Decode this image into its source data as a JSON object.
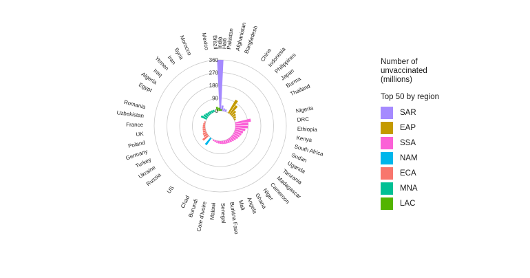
{
  "chart_data": {
    "type": "circular-bar",
    "title": "",
    "radial_ticks": [
      "0",
      "90",
      "180",
      "270",
      "360"
    ],
    "legend": {
      "title": "Number of unvaccinated (millions)",
      "subtitle": "Top 50 by region",
      "items": [
        {
          "region": "SAR",
          "color": "#A58AFF"
        },
        {
          "region": "EAP",
          "color": "#C49A00"
        },
        {
          "region": "SSA",
          "color": "#FB61D7"
        },
        {
          "region": "NAM",
          "color": "#00B6EB"
        },
        {
          "region": "ECA",
          "color": "#F8766D"
        },
        {
          "region": "MNA",
          "color": "#00C094"
        },
        {
          "region": "LAC",
          "color": "#53B400"
        }
      ]
    },
    "countries": [
      {
        "name": "India",
        "region": "SAR",
        "value": 360
      },
      {
        "name": "Pakistan",
        "region": "SAR",
        "value": 38
      },
      {
        "name": "Afghanistan",
        "region": "SAR",
        "value": 20
      },
      {
        "name": "Bangladesh",
        "region": "SAR",
        "value": 16
      },
      {
        "name": "China",
        "region": "EAP",
        "value": 108
      },
      {
        "name": "Indonesia",
        "region": "EAP",
        "value": 76
      },
      {
        "name": "Philippines",
        "region": "EAP",
        "value": 42
      },
      {
        "name": "Japan",
        "region": "EAP",
        "value": 28
      },
      {
        "name": "Burma",
        "region": "EAP",
        "value": 20
      },
      {
        "name": "Thailand",
        "region": "EAP",
        "value": 12
      },
      {
        "name": "Nigeria",
        "region": "SSA",
        "value": 112
      },
      {
        "name": "DRC",
        "region": "SSA",
        "value": 92
      },
      {
        "name": "Ethiopia",
        "region": "SSA",
        "value": 88
      },
      {
        "name": "Kenya",
        "region": "SSA",
        "value": 72
      },
      {
        "name": "South Africa",
        "region": "SSA",
        "value": 60
      },
      {
        "name": "Sudan",
        "region": "SSA",
        "value": 54
      },
      {
        "name": "Uganda",
        "region": "SSA",
        "value": 48
      },
      {
        "name": "Tanzania",
        "region": "SSA",
        "value": 44
      },
      {
        "name": "Madagascar",
        "region": "SSA",
        "value": 38
      },
      {
        "name": "Cameroon",
        "region": "SSA",
        "value": 34
      },
      {
        "name": "Niger",
        "region": "SSA",
        "value": 30
      },
      {
        "name": "Ghana",
        "region": "SSA",
        "value": 28
      },
      {
        "name": "Angola",
        "region": "SSA",
        "value": 26
      },
      {
        "name": "Mali",
        "region": "SSA",
        "value": 24
      },
      {
        "name": "Burkina Faso",
        "region": "SSA",
        "value": 22
      },
      {
        "name": "Senegal",
        "region": "SSA",
        "value": 20
      },
      {
        "name": "Malawi",
        "region": "SSA",
        "value": 18
      },
      {
        "name": "Cote d'Ivoire",
        "region": "SSA",
        "value": 16
      },
      {
        "name": "Burundi",
        "region": "SSA",
        "value": 12
      },
      {
        "name": "Chad",
        "region": "SSA",
        "value": 10
      },
      {
        "name": "US",
        "region": "NAM",
        "value": 60
      },
      {
        "name": "Russia",
        "region": "ECA",
        "value": 50
      },
      {
        "name": "Ukraine",
        "region": "ECA",
        "value": 30
      },
      {
        "name": "Turkey",
        "region": "ECA",
        "value": 28
      },
      {
        "name": "Germany",
        "region": "ECA",
        "value": 22
      },
      {
        "name": "Poland",
        "region": "ECA",
        "value": 20
      },
      {
        "name": "UK",
        "region": "ECA",
        "value": 18
      },
      {
        "name": "France",
        "region": "ECA",
        "value": 16
      },
      {
        "name": "Uzbekistan",
        "region": "ECA",
        "value": 14
      },
      {
        "name": "Romania",
        "region": "ECA",
        "value": 10
      },
      {
        "name": "Egypt",
        "region": "MNA",
        "value": 44
      },
      {
        "name": "Algeria",
        "region": "MNA",
        "value": 32
      },
      {
        "name": "Iraq",
        "region": "MNA",
        "value": 28
      },
      {
        "name": "Yemen",
        "region": "MNA",
        "value": 22
      },
      {
        "name": "Iran",
        "region": "MNA",
        "value": 20
      },
      {
        "name": "Syria",
        "region": "MNA",
        "value": 18
      },
      {
        "name": "Morocco",
        "region": "MNA",
        "value": 16
      },
      {
        "name": "Mexico",
        "region": "LAC",
        "value": 30
      },
      {
        "name": "Brazil",
        "region": "LAC",
        "value": 22
      },
      {
        "name": "Haiti",
        "region": "LAC",
        "value": 12
      }
    ]
  }
}
